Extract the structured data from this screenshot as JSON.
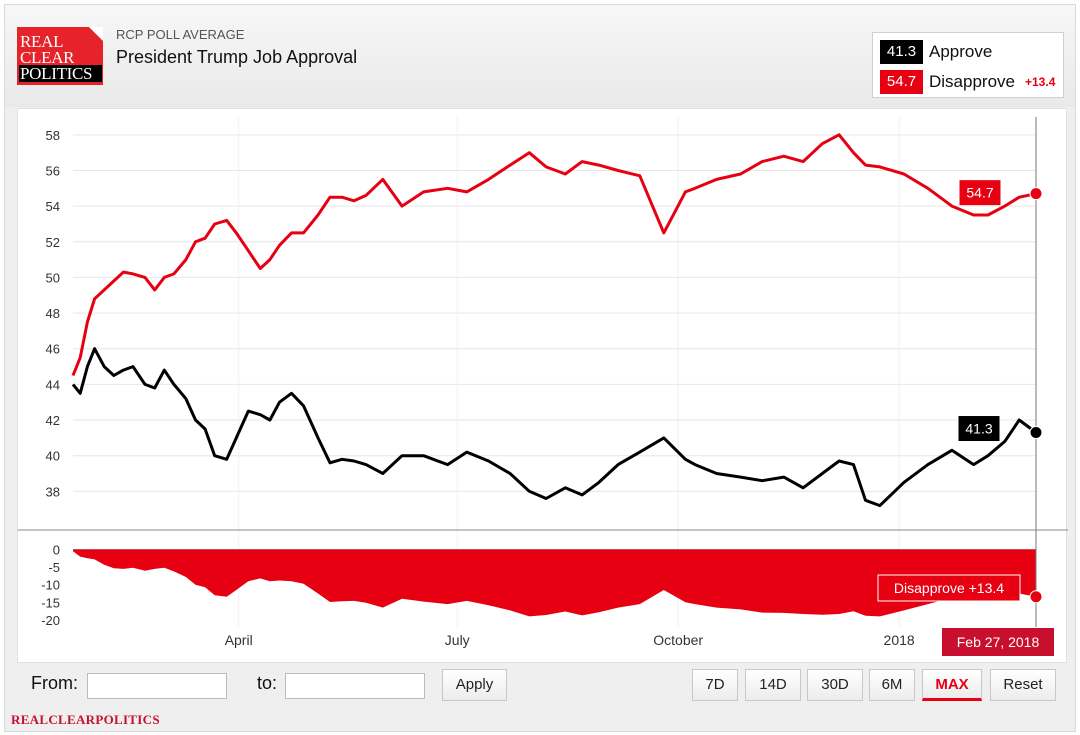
{
  "header": {
    "logo_lines": [
      "REAL",
      "CLEAR",
      "POLITICS"
    ],
    "subtitle": "RCP POLL AVERAGE",
    "title": "President Trump Job Approval"
  },
  "legend": {
    "approve_value": "41.3",
    "approve_label": "Approve",
    "disapprove_value": "54.7",
    "disapprove_label": "Disapprove",
    "spread": "+13.4"
  },
  "colors": {
    "approve": "#000000",
    "disapprove": "#e60012",
    "grid": "#e6e6e6",
    "axis_text": "#333333"
  },
  "chart_data": [
    {
      "type": "line",
      "title": "President Trump Job Approval",
      "ylim": [
        36,
        59
      ],
      "y_ticks": [
        38,
        40,
        42,
        44,
        46,
        48,
        50,
        52,
        54,
        56,
        58
      ],
      "x_tick_labels": [
        "April",
        "July",
        "October",
        "2018"
      ],
      "x_range": [
        "2017-01-22",
        "2018-02-27"
      ],
      "x_tick_dates": [
        "2017-04-01",
        "2017-07-01",
        "2017-10-01",
        "2018-01-01"
      ],
      "grid": true,
      "series": [
        {
          "name": "Approve",
          "color": "#000000",
          "x": [
            "2017-01-22",
            "2017-01-25",
            "2017-01-28",
            "2017-01-31",
            "2017-02-04",
            "2017-02-08",
            "2017-02-12",
            "2017-02-16",
            "2017-02-21",
            "2017-02-25",
            "2017-03-01",
            "2017-03-05",
            "2017-03-10",
            "2017-03-14",
            "2017-03-18",
            "2017-03-22",
            "2017-03-27",
            "2017-03-31",
            "2017-04-05",
            "2017-04-10",
            "2017-04-14",
            "2017-04-18",
            "2017-04-23",
            "2017-04-28",
            "2017-05-04",
            "2017-05-09",
            "2017-05-14",
            "2017-05-19",
            "2017-05-24",
            "2017-05-31",
            "2017-06-08",
            "2017-06-17",
            "2017-06-27",
            "2017-07-05",
            "2017-07-14",
            "2017-07-23",
            "2017-07-31",
            "2017-08-07",
            "2017-08-15",
            "2017-08-22",
            "2017-08-29",
            "2017-09-06",
            "2017-09-15",
            "2017-09-25",
            "2017-10-04",
            "2017-10-08",
            "2017-10-17",
            "2017-10-27",
            "2017-11-05",
            "2017-11-14",
            "2017-11-22",
            "2017-11-30",
            "2017-12-07",
            "2017-12-13",
            "2017-12-18",
            "2017-12-24",
            "2018-01-03",
            "2018-01-13",
            "2018-01-23",
            "2018-02-01",
            "2018-02-07",
            "2018-02-14",
            "2018-02-20",
            "2018-02-27"
          ],
          "y": [
            44.0,
            43.5,
            45.0,
            46.0,
            45.0,
            44.5,
            44.8,
            45.0,
            44.0,
            43.8,
            44.8,
            44.0,
            43.2,
            42.0,
            41.5,
            40.0,
            39.8,
            41.0,
            42.5,
            42.3,
            42.0,
            43.0,
            43.5,
            42.8,
            41.0,
            39.6,
            39.8,
            39.7,
            39.5,
            39.0,
            40.0,
            40.0,
            39.5,
            40.2,
            39.7,
            39.0,
            38.0,
            37.6,
            38.2,
            37.8,
            38.5,
            39.5,
            40.2,
            41.0,
            39.8,
            39.5,
            39.0,
            38.8,
            38.6,
            38.8,
            38.2,
            39.0,
            39.7,
            39.5,
            37.5,
            37.2,
            38.5,
            39.5,
            40.3,
            39.5,
            40.0,
            40.8,
            42.0,
            41.3
          ]
        },
        {
          "name": "Disapprove",
          "color": "#e60012",
          "x": [
            "2017-01-22",
            "2017-01-25",
            "2017-01-28",
            "2017-01-31",
            "2017-02-04",
            "2017-02-08",
            "2017-02-12",
            "2017-02-16",
            "2017-02-21",
            "2017-02-25",
            "2017-03-01",
            "2017-03-05",
            "2017-03-10",
            "2017-03-14",
            "2017-03-18",
            "2017-03-22",
            "2017-03-27",
            "2017-03-31",
            "2017-04-05",
            "2017-04-10",
            "2017-04-14",
            "2017-04-18",
            "2017-04-23",
            "2017-04-28",
            "2017-05-04",
            "2017-05-09",
            "2017-05-14",
            "2017-05-19",
            "2017-05-24",
            "2017-05-31",
            "2017-06-08",
            "2017-06-17",
            "2017-06-27",
            "2017-07-05",
            "2017-07-14",
            "2017-07-23",
            "2017-07-31",
            "2017-08-07",
            "2017-08-15",
            "2017-08-22",
            "2017-08-29",
            "2017-09-06",
            "2017-09-15",
            "2017-09-25",
            "2017-10-04",
            "2017-10-08",
            "2017-10-17",
            "2017-10-27",
            "2017-11-05",
            "2017-11-14",
            "2017-11-22",
            "2017-11-30",
            "2017-12-07",
            "2017-12-13",
            "2017-12-18",
            "2017-12-24",
            "2018-01-03",
            "2018-01-13",
            "2018-01-23",
            "2018-02-01",
            "2018-02-07",
            "2018-02-14",
            "2018-02-20",
            "2018-02-27"
          ],
          "y": [
            44.5,
            45.5,
            47.5,
            48.8,
            49.3,
            49.8,
            50.3,
            50.2,
            50.0,
            49.3,
            50.0,
            50.2,
            51.0,
            52.0,
            52.2,
            53.0,
            53.2,
            52.5,
            51.5,
            50.5,
            51.0,
            51.8,
            52.5,
            52.5,
            53.5,
            54.5,
            54.5,
            54.3,
            54.6,
            55.5,
            54.0,
            54.8,
            55.0,
            54.8,
            55.5,
            56.3,
            57.0,
            56.2,
            55.8,
            56.5,
            56.3,
            56.0,
            55.7,
            52.5,
            54.8,
            55.0,
            55.5,
            55.8,
            56.5,
            56.8,
            56.5,
            57.5,
            58.0,
            57.0,
            56.3,
            56.2,
            55.8,
            55.0,
            54.0,
            53.5,
            53.5,
            54.0,
            54.5,
            54.7
          ]
        }
      ]
    },
    {
      "type": "area",
      "ylim": [
        -22,
        1
      ],
      "y_ticks": [
        0,
        -5,
        -10,
        -15,
        -20
      ],
      "series": [
        {
          "name": "Disapprove",
          "color": "#e60012",
          "x": [
            "2017-01-22",
            "2017-01-25",
            "2017-01-28",
            "2017-01-31",
            "2017-02-04",
            "2017-02-08",
            "2017-02-12",
            "2017-02-16",
            "2017-02-21",
            "2017-02-25",
            "2017-03-01",
            "2017-03-05",
            "2017-03-10",
            "2017-03-14",
            "2017-03-18",
            "2017-03-22",
            "2017-03-27",
            "2017-03-31",
            "2017-04-05",
            "2017-04-10",
            "2017-04-14",
            "2017-04-18",
            "2017-04-23",
            "2017-04-28",
            "2017-05-04",
            "2017-05-09",
            "2017-05-14",
            "2017-05-19",
            "2017-05-24",
            "2017-05-31",
            "2017-06-08",
            "2017-06-17",
            "2017-06-27",
            "2017-07-05",
            "2017-07-14",
            "2017-07-23",
            "2017-07-31",
            "2017-08-07",
            "2017-08-15",
            "2017-08-22",
            "2017-08-29",
            "2017-09-06",
            "2017-09-15",
            "2017-09-25",
            "2017-10-04",
            "2017-10-08",
            "2017-10-17",
            "2017-10-27",
            "2017-11-05",
            "2017-11-14",
            "2017-11-22",
            "2017-11-30",
            "2017-12-07",
            "2017-12-13",
            "2017-12-18",
            "2017-12-24",
            "2018-01-03",
            "2018-01-13",
            "2018-01-23",
            "2018-02-01",
            "2018-02-07",
            "2018-02-14",
            "2018-02-20",
            "2018-02-27"
          ],
          "y": [
            -0.5,
            -2.0,
            -2.5,
            -2.8,
            -4.3,
            -5.3,
            -5.5,
            -5.2,
            -6.0,
            -5.5,
            -5.2,
            -6.2,
            -7.8,
            -10.0,
            -10.7,
            -13.0,
            -13.4,
            -11.5,
            -9.0,
            -8.2,
            -9.0,
            -8.8,
            -9.0,
            -9.7,
            -12.5,
            -14.9,
            -14.7,
            -14.6,
            -15.1,
            -16.5,
            -14.0,
            -14.8,
            -15.5,
            -14.6,
            -15.8,
            -17.3,
            -19.0,
            -18.6,
            -17.6,
            -18.7,
            -17.8,
            -16.5,
            -15.5,
            -11.5,
            -15.0,
            -15.5,
            -16.5,
            -17.0,
            -17.9,
            -18.0,
            -18.3,
            -18.5,
            -18.3,
            -17.5,
            -18.8,
            -19.0,
            -17.3,
            -15.5,
            -13.7,
            -14.0,
            -13.5,
            -13.2,
            -12.5,
            -13.4
          ]
        }
      ]
    }
  ],
  "axes": {
    "main_y_ticks": [
      "38",
      "40",
      "42",
      "44",
      "46",
      "48",
      "50",
      "52",
      "54",
      "56",
      "58"
    ],
    "spread_y_ticks": [
      "0",
      "-5",
      "-10",
      "-15",
      "-20"
    ],
    "x_labels": [
      "April",
      "July",
      "October",
      "2018"
    ]
  },
  "end_labels": {
    "approve": "41.3",
    "disapprove": "54.7",
    "spread": "Disapprove +13.4",
    "date": "Feb 27, 2018"
  },
  "controls": {
    "from_label": "From:",
    "to_label": "to:",
    "from_value": "",
    "to_value": "",
    "apply": "Apply",
    "ranges": [
      "7D",
      "14D",
      "30D",
      "6M",
      "MAX",
      "Reset"
    ]
  },
  "footer": {
    "brand": "REALCLEARPOLITICS"
  }
}
